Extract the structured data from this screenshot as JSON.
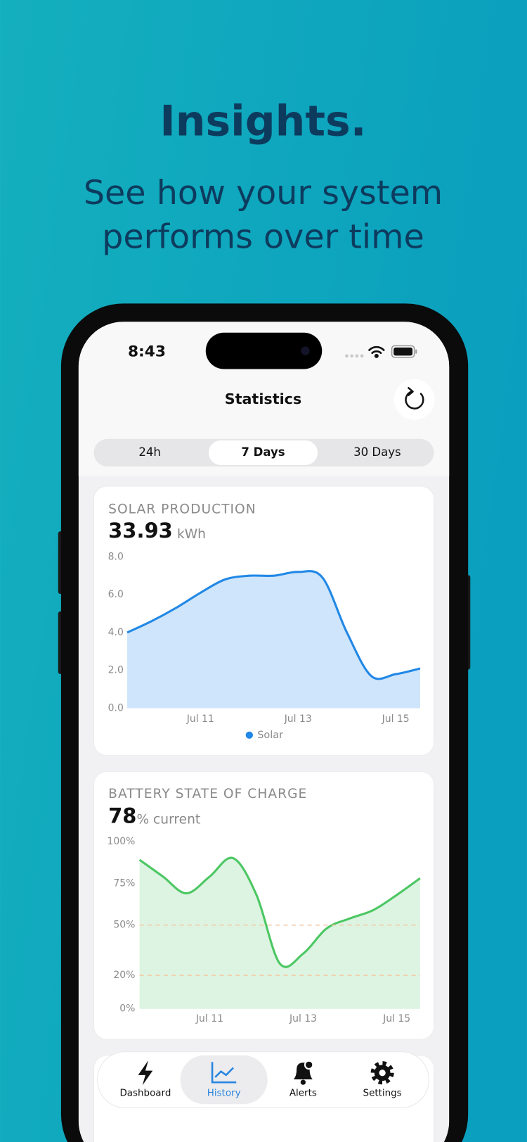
{
  "header": {
    "title": "Insights.",
    "subtitle_lines": [
      "See how your system",
      "performs over time"
    ]
  },
  "status_bar": {
    "time": "8:43"
  },
  "nav": {
    "title": "Statistics"
  },
  "segments": {
    "options": [
      "24h",
      "7 Days",
      "30 Days"
    ],
    "selected": 1
  },
  "chart_data": [
    {
      "type": "area",
      "title": "SOLAR PRODUCTION",
      "headline_value": 33.93,
      "headline_unit": "kWh",
      "categories": [
        null,
        null,
        null,
        "Jul 11",
        null,
        null,
        null,
        "Jul 13",
        null,
        null,
        null,
        "Jul 15",
        null
      ],
      "series": [
        {
          "name": "Solar",
          "color": "#2188e6",
          "fill": "#cfe5fb",
          "values": [
            4.0,
            4.6,
            5.3,
            6.1,
            6.8,
            7.0,
            7.0,
            7.2,
            6.9,
            4.0,
            1.7,
            1.8,
            2.1
          ]
        }
      ],
      "ylim": [
        0,
        8
      ],
      "yticks": [
        {
          "value": 0,
          "label": "0.0"
        },
        {
          "value": 2,
          "label": "2.0"
        },
        {
          "value": 4,
          "label": "4.0"
        },
        {
          "value": 6,
          "label": "6.0"
        },
        {
          "value": 8,
          "label": "8.0"
        }
      ],
      "legend": "bottom"
    },
    {
      "type": "area",
      "title": "BATTERY STATE OF CHARGE",
      "headline_value": 78,
      "headline_unit": "% current",
      "categories": [
        null,
        null,
        null,
        "Jul 11",
        null,
        null,
        null,
        "Jul 13",
        null,
        null,
        null,
        "Jul 15",
        null
      ],
      "series": [
        {
          "color": "#4cc763",
          "fill": "#dcf4e1",
          "values": [
            89,
            79,
            69,
            79,
            90,
            68,
            27,
            33,
            48,
            54,
            59,
            68,
            78
          ]
        }
      ],
      "ylim": [
        0,
        100
      ],
      "yticks": [
        {
          "value": 0,
          "label": "0%"
        },
        {
          "value": 20,
          "label": "20%"
        },
        {
          "value": 50,
          "label": "50%"
        },
        {
          "value": 75,
          "label": "75%"
        },
        {
          "value": 100,
          "label": "100%"
        }
      ],
      "reference_lines": [
        50,
        20
      ],
      "reference_color": "#f6c9a8"
    }
  ],
  "tab_bar": {
    "items": [
      "Dashboard",
      "History",
      "Alerts",
      "Settings"
    ],
    "selected": 1
  }
}
